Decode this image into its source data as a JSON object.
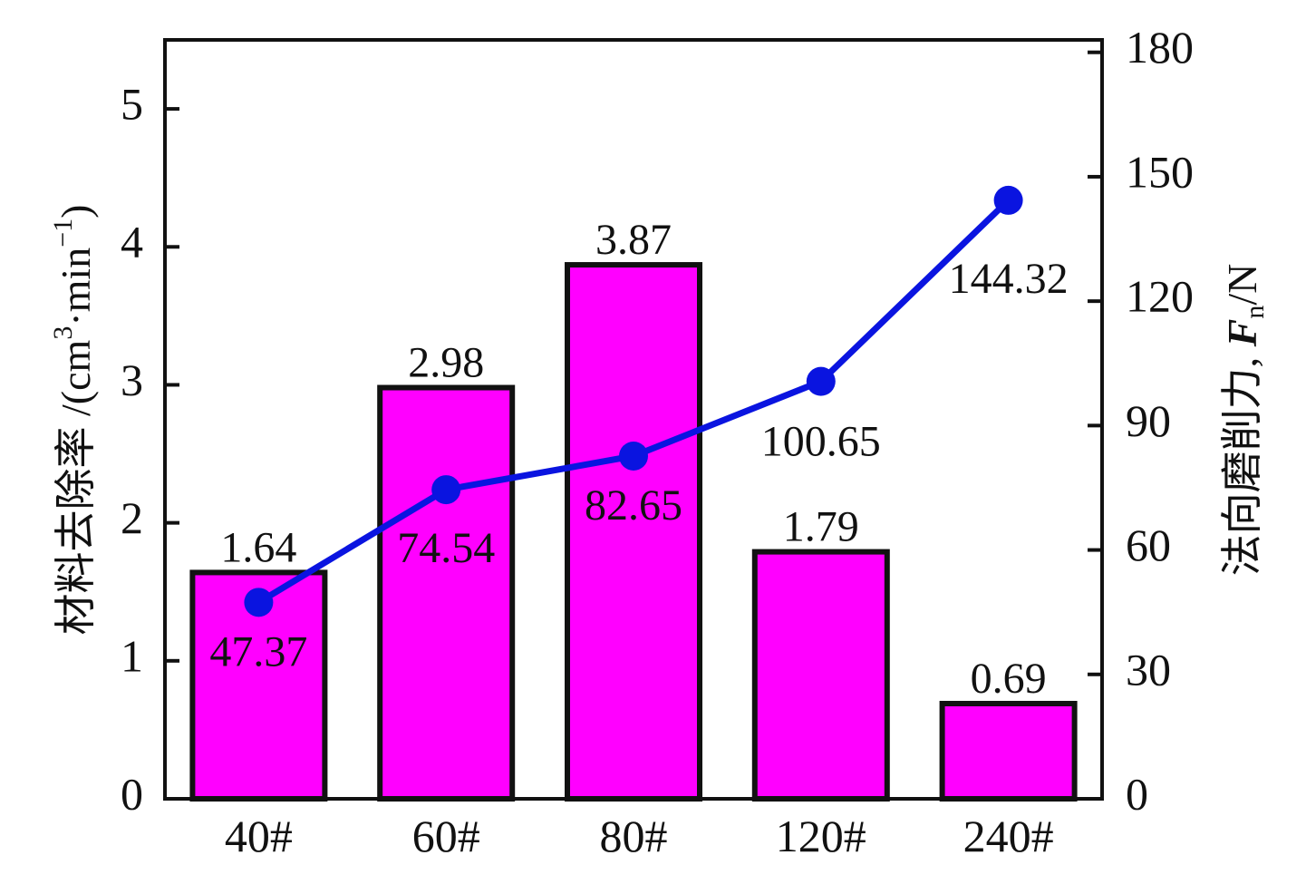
{
  "chart_data": {
    "type": "bar",
    "categories": [
      "40#",
      "60#",
      "80#",
      "120#",
      "240#"
    ],
    "series": [
      {
        "type": "bar",
        "axis": "left",
        "values": [
          1.64,
          2.98,
          3.87,
          1.79,
          0.69
        ],
        "labels": [
          "1.64",
          "2.98",
          "3.87",
          "1.79",
          "0.69"
        ],
        "color": "#ff00ff"
      },
      {
        "type": "line",
        "axis": "right",
        "values": [
          47.37,
          74.54,
          82.65,
          100.65,
          144.32
        ],
        "labels": [
          "47.37",
          "74.54",
          "82.65",
          "100.65",
          "144.32"
        ],
        "color": "#0a14e0"
      }
    ],
    "ylabel_left": {
      "text": "材料去除率 /(cm",
      "sup1": "3",
      "mid": "·min",
      "sup2": "−1",
      "end": ")"
    },
    "ylabel_right": {
      "text": "法向磨削力, ",
      "symbol": "F",
      "sub": "n",
      "end": "/N"
    },
    "ylim_left": [
      0,
      5.5
    ],
    "ylim_right": [
      0,
      183
    ],
    "yticks_left": [
      0,
      1,
      2,
      3,
      4,
      5
    ],
    "yticks_right": [
      0,
      30,
      60,
      90,
      120,
      150,
      180
    ],
    "grid": false,
    "legend": "none"
  }
}
